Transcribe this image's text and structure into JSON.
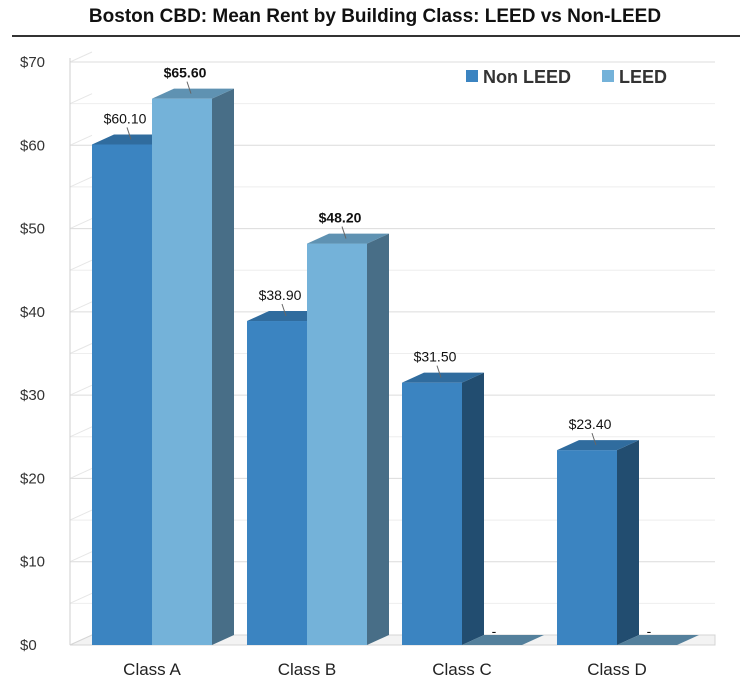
{
  "chart_data": {
    "type": "bar",
    "title": "Boston CBD: Mean Rent by Building Class: LEED vs Non-LEED",
    "xlabel": "",
    "ylabel": "",
    "ylim": [
      0,
      70
    ],
    "y_ticks": [
      "$0",
      "$10",
      "$20",
      "$30",
      "$40",
      "$50",
      "$60",
      "$70"
    ],
    "categories": [
      "Class A",
      "Class B",
      "Class C",
      "Class D"
    ],
    "series": [
      {
        "name": "Non LEED",
        "values": [
          60.1,
          38.9,
          31.5,
          23.4
        ],
        "labels": [
          "$60.10",
          "$38.90",
          "$31.50",
          "$23.40"
        ],
        "color": "#3b84c1"
      },
      {
        "name": "LEED",
        "values": [
          65.6,
          48.2,
          0,
          0
        ],
        "labels": [
          "$65.60",
          "$48.20",
          "-",
          "-"
        ],
        "color": "#74b2d9"
      }
    ],
    "legend_position": "top-right",
    "grid": true
  }
}
